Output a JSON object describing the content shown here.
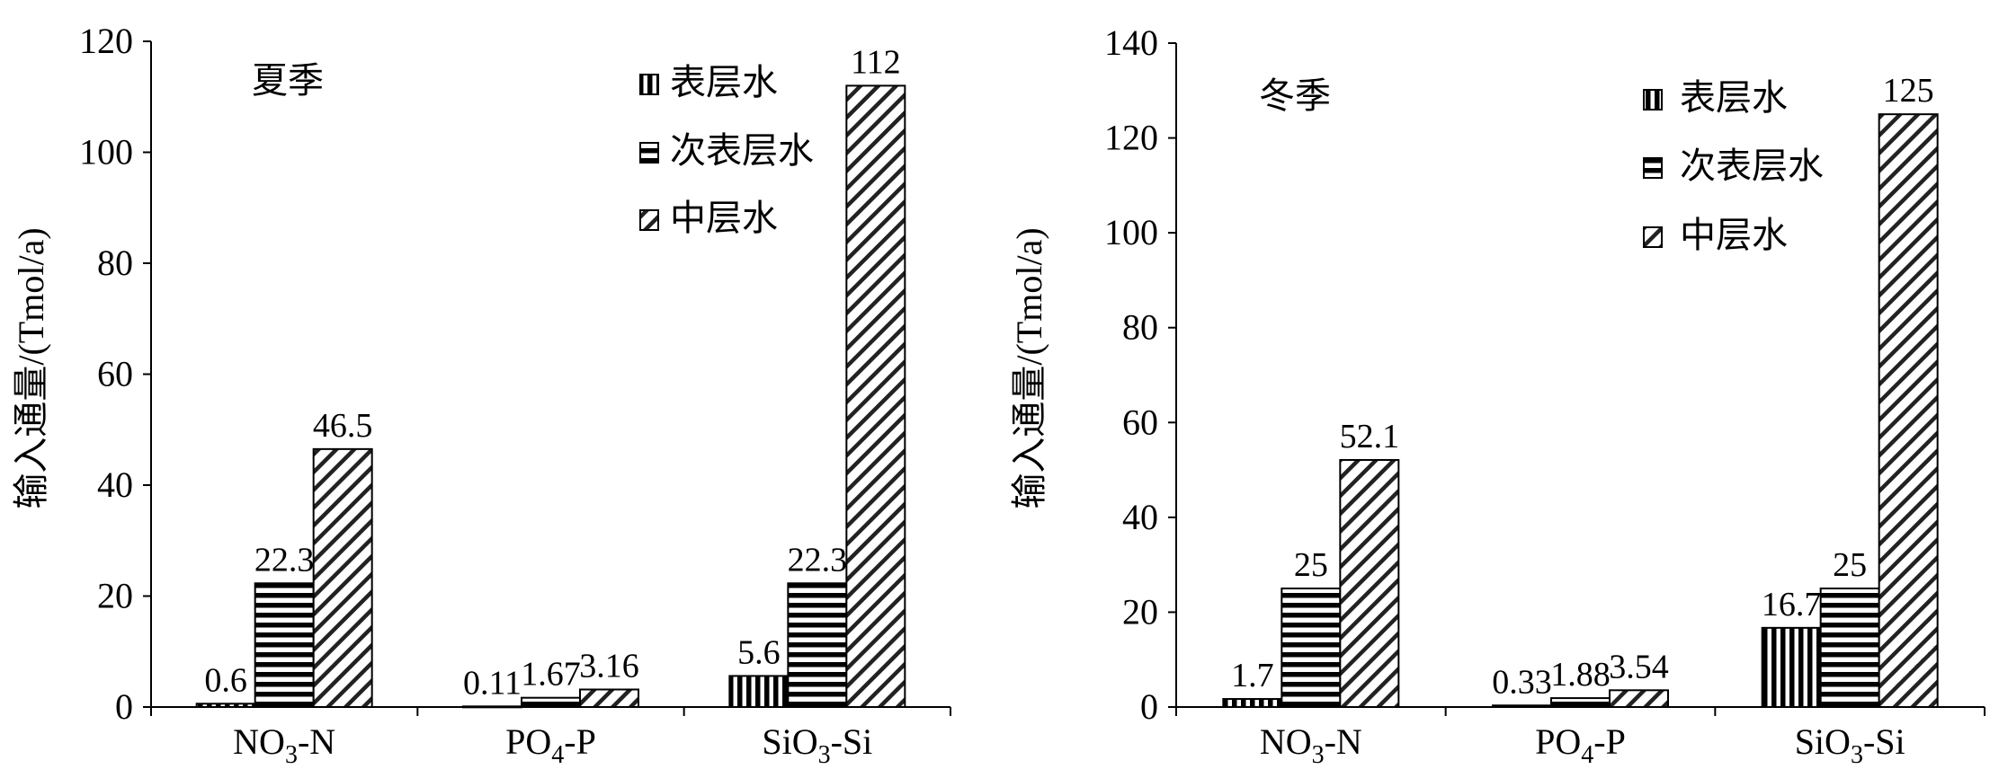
{
  "chart_data": [
    {
      "type": "bar",
      "title": "夏季",
      "ylabel": "输入通量/(Tmol/a)",
      "ylim": [
        0,
        120
      ],
      "yticks": [
        0,
        20,
        40,
        60,
        80,
        100,
        120
      ],
      "categories": [
        "NO3-N",
        "PO4-P",
        "SiO3-Si"
      ],
      "series": [
        {
          "name": "表层水",
          "values": [
            0.6,
            0.11,
            5.6
          ],
          "labels": [
            "0.6",
            "0.11",
            "5.6"
          ],
          "pattern": "vertical-stripes"
        },
        {
          "name": "次表层水",
          "values": [
            22.3,
            1.67,
            22.3
          ],
          "labels": [
            "22.3",
            "1.67",
            "22.3"
          ],
          "pattern": "horizontal-stripes"
        },
        {
          "name": "中层水",
          "values": [
            46.5,
            3.16,
            112
          ],
          "labels": [
            "46.5",
            "3.16",
            "112"
          ],
          "pattern": "diagonal-stripes"
        }
      ],
      "legend": "top-right",
      "grid": false
    },
    {
      "type": "bar",
      "title": "冬季",
      "ylabel": "输入通量/(Tmol/a)",
      "ylim": [
        0,
        140
      ],
      "yticks": [
        0,
        20,
        40,
        60,
        80,
        100,
        120,
        140
      ],
      "categories": [
        "NO3-N",
        "PO4-P",
        "SiO3-Si"
      ],
      "series": [
        {
          "name": "表层水",
          "values": [
            1.7,
            0.33,
            16.7
          ],
          "labels": [
            "1.7",
            "0.33",
            "16.7"
          ],
          "pattern": "vertical-stripes"
        },
        {
          "name": "次表层水",
          "values": [
            25,
            1.88,
            25
          ],
          "labels": [
            "25",
            "1.88",
            "25"
          ],
          "pattern": "horizontal-stripes"
        },
        {
          "name": "中层水",
          "values": [
            52.1,
            3.54,
            125
          ],
          "labels": [
            "52.1",
            "3.54",
            "125"
          ],
          "pattern": "diagonal-stripes"
        }
      ],
      "legend": "top-right",
      "grid": false
    }
  ],
  "category_labels": [
    {
      "main": "NO",
      "sub": "3",
      "tail": "-N"
    },
    {
      "main": "PO",
      "sub": "4",
      "tail": "-P"
    },
    {
      "main": "SiO",
      "sub": "3",
      "tail": "-Si"
    }
  ]
}
